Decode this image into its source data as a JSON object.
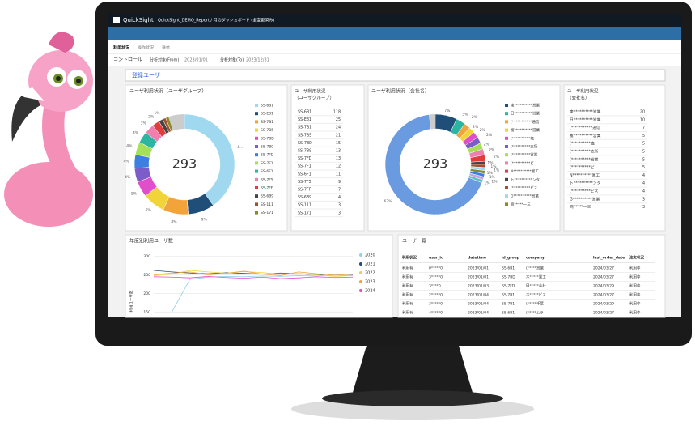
{
  "header": {
    "app": "QuickSight",
    "breadcrumb": "QuickSight_DEMO_Report / 月のダッシュボード (全変更済み)"
  },
  "tabs": [
    "利用状況",
    "操作状況",
    "送信"
  ],
  "controls": {
    "title": "コントロール",
    "from_label": "分析対象(From)",
    "from": "2023/01/01",
    "to_label": "分析対象(To)",
    "to": "2023/12/31"
  },
  "filter": "登録ユーザ",
  "group_donut": {
    "title": "ユーザ利用状況（ユーザグループ）",
    "total": 293,
    "colors": [
      "#9fd8ef",
      "#1f4e79",
      "#f2a33a",
      "#f0d43a",
      "#e04fc9",
      "#7b5cc9",
      "#3d7fe0",
      "#a6e05a",
      "#2cb5a0",
      "#f07fb0",
      "#e03c3c",
      "#444444",
      "#a0522d",
      "#8a8a2a"
    ],
    "slice_labels": [
      "4...",
      "9%",
      "8%",
      "7%",
      "5%",
      "4%",
      "4%",
      "4%",
      "4%",
      "3%",
      "2%",
      "1%"
    ]
  },
  "group_table": {
    "title": [
      "ユーザ利用状況",
      "（ユーザグループ）"
    ],
    "rows": [
      [
        "SS-6B1",
        118
      ],
      [
        "SS-E81",
        25
      ],
      [
        "SS-7B1",
        24
      ],
      [
        "SS-7B5",
        21
      ],
      [
        "SS-7BD",
        15
      ],
      [
        "SS-7B9",
        13
      ],
      [
        "SS-7FD",
        13
      ],
      [
        "SS-7F1",
        12
      ],
      [
        "SS-6F1",
        11
      ],
      [
        "SS-7F5",
        9
      ],
      [
        "SS-7FF",
        7
      ],
      [
        "SS-6B9",
        4
      ],
      [
        "SS-111",
        3
      ],
      [
        "SS-171",
        3
      ]
    ]
  },
  "company_donut": {
    "title": "ユーザ利用状況（会社名）",
    "total": 293,
    "values": [
      7,
      3,
      2,
      2,
      2,
      2,
      2,
      2,
      2,
      1,
      1,
      1,
      1,
      1,
      1,
      1,
      67
    ],
    "value_labels": [
      "7%",
      "3%",
      "2%",
      "2%",
      "2%",
      "2%",
      "2%",
      "2%",
      "2%",
      "1%",
      "1%",
      "1%",
      "1%",
      "1%",
      "1%",
      "1%",
      "67%"
    ],
    "colors": [
      "#1f4e79",
      "#2cb5a0",
      "#f2a33a",
      "#f0d43a",
      "#e04fc9",
      "#7b5cc9",
      "#a6e05a",
      "#f07fb0",
      "#e03c3c",
      "#444444",
      "#a0522d",
      "#9fd8ef",
      "#8a8a2a",
      "#3d7fe0",
      "#c9a0e0",
      "#60c0c0",
      "#6a9be0"
    ]
  },
  "company_table": {
    "title": [
      "ユーザ利用状況",
      "（会社名）"
    ],
    "rows": [
      [
        "東**********営業",
        20
      ],
      [
        "日**********営業",
        10
      ],
      [
        "(***********通信",
        7
      ],
      [
        "富**********営業",
        5
      ],
      [
        "(**********塩",
        5
      ],
      [
        "(**********支所",
        5
      ],
      [
        "(**********営業",
        5
      ],
      [
        "(**********ビ",
        5
      ],
      [
        "N**********富工",
        4
      ],
      [
        "ト**********ンタ",
        4
      ],
      [
        "(**********ビス",
        4
      ],
      [
        "G**********営業",
        3
      ],
      [
        "商*****一三",
        3
      ]
    ]
  },
  "line_chart": {
    "title": "年度別利用ユーザ数",
    "y_label": "利用ユーザ数",
    "ylim": [
      140,
      310
    ],
    "yticks": [
      300,
      250,
      200,
      150
    ],
    "series": [
      {
        "name": "2020",
        "color": "#8fd0ec",
        "values": [
          null,
          150,
          238,
          244,
          246,
          245,
          247,
          246,
          248,
          247,
          249,
          248
        ]
      },
      {
        "name": "2021",
        "color": "#1f4e79",
        "values": [
          262,
          258,
          255,
          253,
          256,
          254,
          252,
          255,
          253,
          250,
          252,
          251
        ]
      },
      {
        "name": "2022",
        "color": "#f0d43a",
        "values": [
          248,
          252,
          262,
          258,
          255,
          259,
          256,
          252,
          254,
          250,
          246,
          248
        ]
      },
      {
        "name": "2023",
        "color": "#f2a33a",
        "values": [
          250,
          255,
          258,
          250,
          254,
          260,
          252,
          248,
          258,
          253,
          249,
          252
        ]
      },
      {
        "name": "2024",
        "color": "#e04fc9",
        "values": [
          245,
          244,
          242,
          246,
          243,
          241,
          244,
          240,
          242,
          245,
          243,
          244
        ]
      }
    ]
  },
  "user_table": {
    "title": "ユーザ一覧",
    "headers": [
      "利用状況",
      "user_id",
      "datetime",
      "id_group",
      "company",
      "last_order_date",
      "注文状況"
    ],
    "rows": [
      [
        "利用有",
        "0*****0",
        "2023/01/01",
        "SS-6B1",
        "(*****営業",
        "2024/03/27",
        "利用中"
      ],
      [
        "利用有",
        "3*****0",
        "2023/01/01",
        "SS-7BD",
        "木*****業工",
        "2024/03/27",
        "利用中"
      ],
      [
        "利用有",
        "3****0",
        "2023/01/03",
        "SS-7FD",
        "甲*****会社",
        "2024/03/29",
        "利用中"
      ],
      [
        "利用有",
        "2*****0",
        "2023/01/04",
        "SS-7B1",
        "ホ*****ビス",
        "2024/03/27",
        "利用中"
      ],
      [
        "利用有",
        "3*****0",
        "2023/01/04",
        "SS-7B1",
        "(*****千葉",
        "2024/03/29",
        "利用中"
      ],
      [
        "利用有",
        "4*****0",
        "2023/01/04",
        "SS-6B1",
        "(*****ムラ",
        "2024/03/27",
        "利用中"
      ]
    ]
  }
}
